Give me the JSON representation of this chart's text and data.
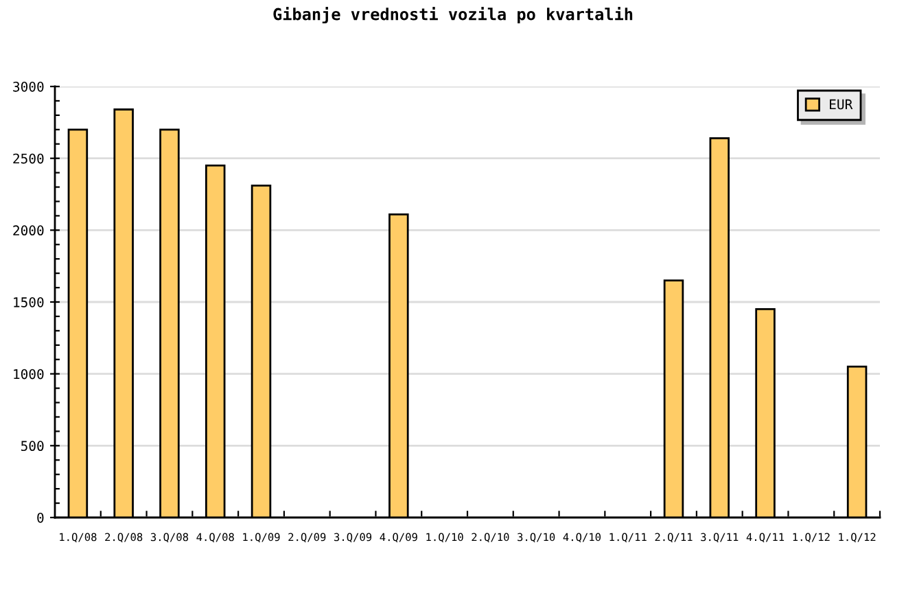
{
  "chart_data": {
    "type": "bar",
    "title": "Gibanje vrednosti vozila po kvartalih",
    "categories": [
      "1.Q/08",
      "2.Q/08",
      "3.Q/08",
      "4.Q/08",
      "1.Q/09",
      "2.Q/09",
      "3.Q/09",
      "4.Q/09",
      "1.Q/10",
      "2.Q/10",
      "3.Q/10",
      "4.Q/10",
      "1.Q/11",
      "2.Q/11",
      "3.Q/11",
      "4.Q/11",
      "1.Q/12",
      "1.Q/12"
    ],
    "series": [
      {
        "name": "EUR",
        "color": "#ffcc66",
        "values": [
          2700,
          2840,
          2700,
          2450,
          2310,
          null,
          null,
          2110,
          null,
          null,
          null,
          null,
          null,
          1650,
          2640,
          1450,
          null,
          1050
        ]
      }
    ],
    "ylim": [
      0,
      3000
    ],
    "yticks": [
      0,
      {
        "value": 100,
        "label": null
      },
      {
        "value": 200,
        "label": null
      },
      {
        "value": 300,
        "label": null
      },
      {
        "value": 400,
        "label": null
      },
      500,
      {
        "value": 600,
        "label": null
      },
      {
        "value": 700,
        "label": null
      },
      {
        "value": 800,
        "label": null
      },
      {
        "value": 900,
        "label": null
      },
      1000,
      {
        "value": 1100,
        "label": null
      },
      {
        "value": 1200,
        "label": null
      },
      {
        "value": 1300,
        "label": null
      },
      {
        "value": 1400,
        "label": null
      },
      1500,
      {
        "value": 1600,
        "label": null
      },
      {
        "value": 1700,
        "label": null
      },
      {
        "value": 1800,
        "label": null
      },
      {
        "value": 1900,
        "label": null
      },
      2000,
      {
        "value": 2100,
        "label": null
      },
      {
        "value": 2200,
        "label": null
      },
      {
        "value": 2300,
        "label": null
      },
      {
        "value": 2400,
        "label": null
      },
      2500,
      {
        "value": 2600,
        "label": null
      },
      {
        "value": 2700,
        "label": null
      },
      {
        "value": 2800,
        "label": null
      },
      {
        "value": 2900,
        "label": null
      },
      3000
    ],
    "grid": "y",
    "legend": "top right"
  }
}
